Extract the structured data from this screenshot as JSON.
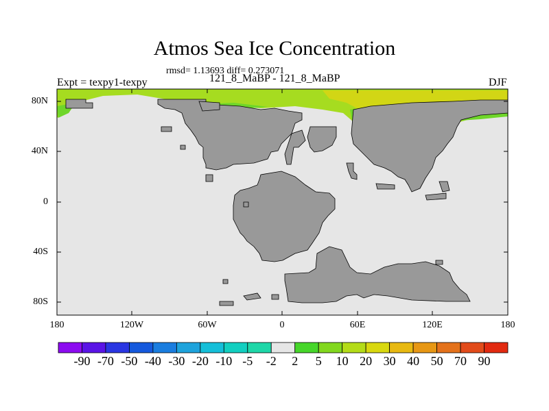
{
  "title": "Atmos Sea Ice Concentration",
  "subtitle": "rmsd= 1.13693 diff= 0.273071",
  "left_label": "Expt = texpy1-texpy",
  "center_label": "121_8_MaBP - 121_8_MaBP",
  "right_label": "DJF",
  "map": {
    "lat_ticks": [
      "80N",
      "40N",
      "0",
      "40S",
      "80S"
    ],
    "lon_ticks": [
      "180",
      "120W",
      "60W",
      "0",
      "60E",
      "120E",
      "180"
    ],
    "ocean_color": "#e6e6e6",
    "land_color": "#999999"
  },
  "colorbar": {
    "labels": [
      "-90",
      "-70",
      "-50",
      "-40",
      "-30",
      "-20",
      "-10",
      "-5",
      "-2",
      "2",
      "5",
      "10",
      "20",
      "30",
      "40",
      "50",
      "70",
      "90"
    ],
    "colors": [
      "#8c0bf0",
      "#5a14e6",
      "#2a36e2",
      "#1559dd",
      "#1a7ddf",
      "#1ea3dc",
      "#15bfd9",
      "#12cfc0",
      "#1ed7a8",
      "#e6e6e6",
      "#46d62a",
      "#82d81e",
      "#b4dc18",
      "#d9d80f",
      "#e8b911",
      "#e79714",
      "#e4721b",
      "#e24b1a",
      "#e22a10"
    ]
  }
}
